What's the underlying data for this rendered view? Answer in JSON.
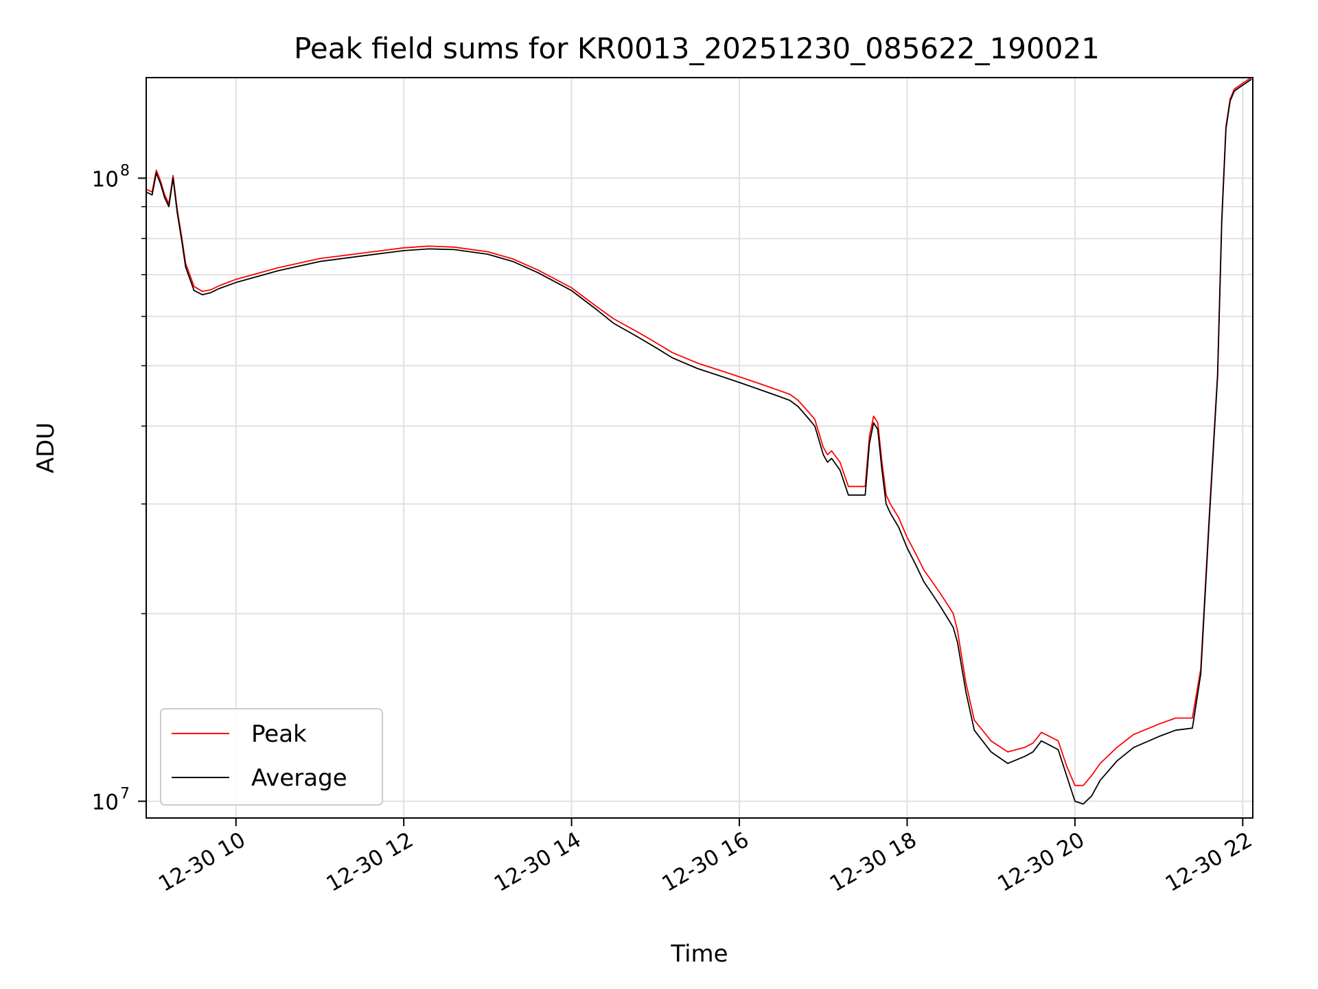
{
  "chart_data": {
    "type": "line",
    "title": "Peak field sums for KR0013_20251230_085622_190021",
    "xlabel": "Time",
    "ylabel": "ADU",
    "yscale": "log",
    "xlim": [
      8.93,
      22.12
    ],
    "ylim": [
      9400000,
      145000000
    ],
    "grid": true,
    "legend_position": "lower-left",
    "x_ticks": [
      {
        "value": 10,
        "label": "12-30 10"
      },
      {
        "value": 12,
        "label": "12-30 12"
      },
      {
        "value": 14,
        "label": "12-30 14"
      },
      {
        "value": 16,
        "label": "12-30 16"
      },
      {
        "value": 18,
        "label": "12-30 18"
      },
      {
        "value": 20,
        "label": "12-30 20"
      },
      {
        "value": 22,
        "label": "12-30 22"
      }
    ],
    "y_major_ticks": [
      {
        "value": 10000000,
        "base": "10",
        "exp": "7"
      },
      {
        "value": 100000000,
        "base": "10",
        "exp": "8"
      }
    ],
    "y_minor_ticks": [
      20000000,
      30000000,
      40000000,
      50000000,
      60000000,
      70000000,
      80000000,
      90000000
    ],
    "x": [
      8.93,
      9.0,
      9.05,
      9.1,
      9.15,
      9.2,
      9.25,
      9.3,
      9.35,
      9.4,
      9.5,
      9.6,
      9.7,
      9.8,
      10.0,
      10.5,
      11.0,
      11.5,
      12.0,
      12.3,
      12.6,
      13.0,
      13.3,
      13.6,
      14.0,
      14.3,
      14.5,
      14.8,
      15.0,
      15.2,
      15.5,
      15.8,
      16.0,
      16.2,
      16.4,
      16.5,
      16.6,
      16.7,
      16.8,
      16.9,
      17.0,
      17.05,
      17.1,
      17.2,
      17.3,
      17.4,
      17.5,
      17.55,
      17.6,
      17.65,
      17.7,
      17.75,
      17.8,
      17.9,
      18.0,
      18.1,
      18.2,
      18.3,
      18.4,
      18.5,
      18.55,
      18.6,
      18.7,
      18.8,
      19.0,
      19.2,
      19.4,
      19.5,
      19.6,
      19.7,
      19.8,
      19.9,
      20.0,
      20.1,
      20.2,
      20.3,
      20.5,
      20.7,
      21.0,
      21.2,
      21.4,
      21.5,
      21.6,
      21.7,
      21.75,
      21.8,
      21.85,
      21.9,
      22.0,
      22.1
    ],
    "series": [
      {
        "name": "Average",
        "color": "#000000",
        "values": [
          95000000,
          94000000,
          102000000,
          98000000,
          93000000,
          90000000,
          100000000,
          88000000,
          80000000,
          72000000,
          66000000,
          65000000,
          65500000,
          66500000,
          68000000,
          71000000,
          73500000,
          75000000,
          76500000,
          77000000,
          76800000,
          75500000,
          73500000,
          70500000,
          66000000,
          61500000,
          58500000,
          55500000,
          53500000,
          51500000,
          49500000,
          48000000,
          47000000,
          46000000,
          45000000,
          44500000,
          44000000,
          43000000,
          41500000,
          40000000,
          36000000,
          35000000,
          35500000,
          34000000,
          31000000,
          31000000,
          31000000,
          37500000,
          40500000,
          39500000,
          34000000,
          30000000,
          29000000,
          27500000,
          25500000,
          24000000,
          22500000,
          21500000,
          20500000,
          19500000,
          19000000,
          18000000,
          15000000,
          13000000,
          12000000,
          11500000,
          11800000,
          12000000,
          12500000,
          12300000,
          12100000,
          11000000,
          10000000,
          9900000,
          10200000,
          10800000,
          11600000,
          12200000,
          12700000,
          13000000,
          13100000,
          16000000,
          28000000,
          48000000,
          85000000,
          120000000,
          133000000,
          138000000,
          141000000,
          144000000
        ]
      },
      {
        "name": "Peak",
        "color": "#ff0000",
        "values": [
          96000000,
          95000000,
          103000000,
          99000000,
          94000000,
          91000000,
          101000000,
          89000000,
          81000000,
          73000000,
          67000000,
          65800000,
          66200000,
          67200000,
          68800000,
          71800000,
          74300000,
          75800000,
          77300000,
          77800000,
          77500000,
          76200000,
          74200000,
          71200000,
          66700000,
          62200000,
          59500000,
          56500000,
          54500000,
          52500000,
          50500000,
          49000000,
          48000000,
          47000000,
          46000000,
          45500000,
          45000000,
          44000000,
          42500000,
          41000000,
          37000000,
          36000000,
          36500000,
          35000000,
          32000000,
          32000000,
          32000000,
          38500000,
          41500000,
          40500000,
          35000000,
          31000000,
          30000000,
          28500000,
          26500000,
          25000000,
          23500000,
          22500000,
          21500000,
          20500000,
          20000000,
          18800000,
          15500000,
          13500000,
          12500000,
          12000000,
          12200000,
          12400000,
          12900000,
          12700000,
          12500000,
          11400000,
          10600000,
          10600000,
          11000000,
          11500000,
          12200000,
          12800000,
          13300000,
          13600000,
          13600000,
          16300000,
          28500000,
          48500000,
          86000000,
          121000000,
          134000000,
          139000000,
          142000000,
          145000000
        ]
      }
    ],
    "legend": [
      {
        "label": "Peak",
        "color": "#ff0000"
      },
      {
        "label": "Average",
        "color": "#000000"
      }
    ]
  }
}
